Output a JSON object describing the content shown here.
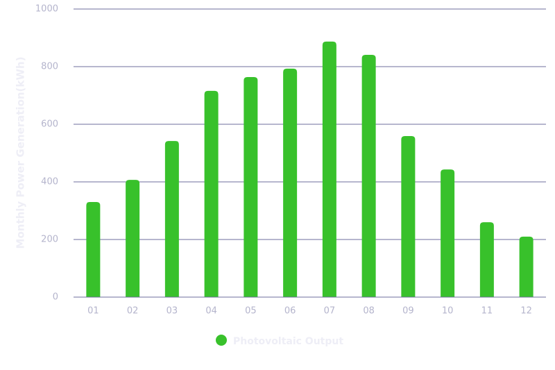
{
  "chart_data": {
    "type": "bar",
    "y_label": "Monthly Power Generation(kWh)",
    "categories": [
      "01",
      "02",
      "03",
      "04",
      "05",
      "06",
      "07",
      "08",
      "09",
      "10",
      "11",
      "12"
    ],
    "series": [
      {
        "name": "Photovoltaic Output",
        "color": "#38c12b",
        "values": [
          330,
          407,
          542,
          716,
          764,
          793,
          887,
          841,
          559,
          443,
          260,
          210
        ]
      }
    ],
    "ylim": [
      0,
      1000
    ],
    "yticks": [
      0,
      200,
      400,
      600,
      800,
      1000
    ],
    "grid": true
  }
}
